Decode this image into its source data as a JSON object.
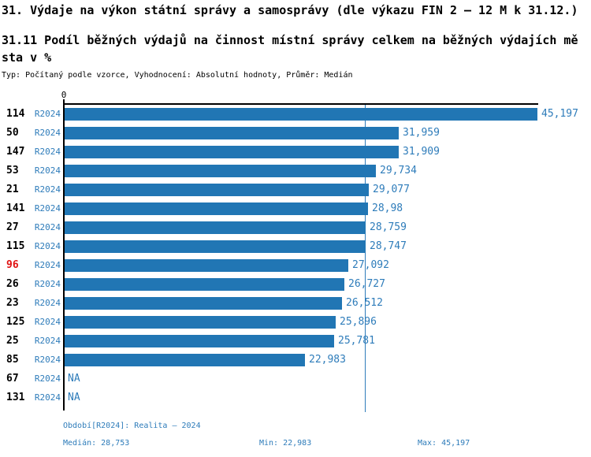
{
  "header": {
    "title": "31. Výdaje na výkon státní správy a samosprávy (dle výkazu FIN 2 – 12 M k 31.12.)",
    "subtitle_line1": "31.11 Podíl běžných výdajů na činnost místní správy celkem na běžných výdajích mě",
    "subtitle_line2": "sta v %",
    "meta": "Typ: Počítaný podle vzorce, Vyhodnocení: Absolutní hodnoty, Průměr: Medián"
  },
  "chart_data": {
    "type": "bar",
    "orientation": "horizontal",
    "title": "31.11 Podíl běžných výdajů na činnost místní správy celkem na běžných výdajích města v %",
    "axis_zero_label": "0",
    "max_value": 45.197,
    "median_value": 28.753,
    "min_value": 22.983,
    "highlighted_category": "96",
    "categories": [
      "114",
      "50",
      "147",
      "53",
      "21",
      "141",
      "27",
      "115",
      "96",
      "26",
      "23",
      "125",
      "25",
      "85",
      "67",
      "131"
    ],
    "rows": [
      {
        "id": "114",
        "period": "R2024",
        "value": 45.197,
        "label": "45,197",
        "highlight": false
      },
      {
        "id": "50",
        "period": "R2024",
        "value": 31.959,
        "label": "31,959",
        "highlight": false
      },
      {
        "id": "147",
        "period": "R2024",
        "value": 31.909,
        "label": "31,909",
        "highlight": false
      },
      {
        "id": "53",
        "period": "R2024",
        "value": 29.734,
        "label": "29,734",
        "highlight": false
      },
      {
        "id": "21",
        "period": "R2024",
        "value": 29.077,
        "label": "29,077",
        "highlight": false
      },
      {
        "id": "141",
        "period": "R2024",
        "value": 28.98,
        "label": "28,98",
        "highlight": false
      },
      {
        "id": "27",
        "period": "R2024",
        "value": 28.759,
        "label": "28,759",
        "highlight": false
      },
      {
        "id": "115",
        "period": "R2024",
        "value": 28.747,
        "label": "28,747",
        "highlight": false
      },
      {
        "id": "96",
        "period": "R2024",
        "value": 27.092,
        "label": "27,092",
        "highlight": true
      },
      {
        "id": "26",
        "period": "R2024",
        "value": 26.727,
        "label": "26,727",
        "highlight": false
      },
      {
        "id": "23",
        "period": "R2024",
        "value": 26.512,
        "label": "26,512",
        "highlight": false
      },
      {
        "id": "125",
        "period": "R2024",
        "value": 25.896,
        "label": "25,896",
        "highlight": false
      },
      {
        "id": "25",
        "period": "R2024",
        "value": 25.781,
        "label": "25,781",
        "highlight": false
      },
      {
        "id": "85",
        "period": "R2024",
        "value": 22.983,
        "label": "22,983",
        "highlight": false
      },
      {
        "id": "67",
        "period": "R2024",
        "value": null,
        "label": "NA",
        "highlight": false
      },
      {
        "id": "131",
        "period": "R2024",
        "value": null,
        "label": "NA",
        "highlight": false
      }
    ]
  },
  "footer": {
    "period": "Období[R2024]: Realita – 2024",
    "median": "Medián: 28,753",
    "min": "Min: 22,983",
    "max": "Max: 45,197"
  },
  "colors": {
    "bar": "#2176b4",
    "blue": "#2e7cba",
    "red": "#e01212"
  }
}
